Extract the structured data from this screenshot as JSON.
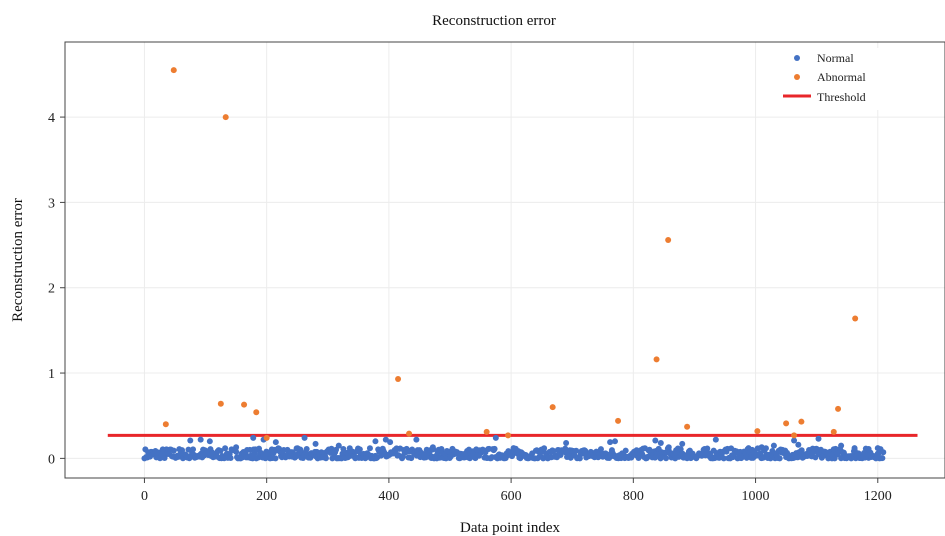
{
  "chart_data": {
    "type": "scatter",
    "title": "Reconstruction error",
    "xlabel": "Data point index",
    "ylabel": "Reconstruction error",
    "xlim": [
      -130,
      1310
    ],
    "ylim": [
      -0.23,
      4.88
    ],
    "xticks": [
      0,
      200,
      400,
      600,
      800,
      1000,
      1200
    ],
    "yticks": [
      0,
      1,
      2,
      3,
      4
    ],
    "grid": true,
    "legend_position": "top-right",
    "colors": {
      "normal": "#4472c4",
      "abnormal": "#ed7d31",
      "threshold": "#e8262a"
    },
    "threshold": {
      "name": "Threshold",
      "y": 0.27,
      "x_range": [
        -60,
        1265
      ]
    },
    "series": [
      {
        "name": "Normal",
        "baseline_range": [
          0.0,
          0.12
        ],
        "x_range": [
          0,
          1210
        ],
        "points": [
          [
            75,
            0.21
          ],
          [
            92,
            0.22
          ],
          [
            107,
            0.2
          ],
          [
            150,
            0.13
          ],
          [
            178,
            0.24
          ],
          [
            195,
            0.22
          ],
          [
            215,
            0.19
          ],
          [
            262,
            0.24
          ],
          [
            280,
            0.17
          ],
          [
            318,
            0.15
          ],
          [
            378,
            0.2
          ],
          [
            395,
            0.22
          ],
          [
            402,
            0.19
          ],
          [
            445,
            0.22
          ],
          [
            472,
            0.13
          ],
          [
            575,
            0.24
          ],
          [
            604,
            0.12
          ],
          [
            690,
            0.18
          ],
          [
            762,
            0.19
          ],
          [
            770,
            0.2
          ],
          [
            836,
            0.21
          ],
          [
            845,
            0.18
          ],
          [
            858,
            0.13
          ],
          [
            880,
            0.17
          ],
          [
            935,
            0.22
          ],
          [
            1010,
            0.13
          ],
          [
            1030,
            0.15
          ],
          [
            1063,
            0.21
          ],
          [
            1070,
            0.16
          ],
          [
            1103,
            0.23
          ],
          [
            1140,
            0.15
          ],
          [
            1162,
            0.12
          ],
          [
            1185,
            0.11
          ],
          [
            1200,
            0.12
          ]
        ]
      },
      {
        "name": "Abnormal",
        "points": [
          [
            35,
            0.4
          ],
          [
            48,
            4.55
          ],
          [
            133,
            4.0
          ],
          [
            125,
            0.64
          ],
          [
            163,
            0.63
          ],
          [
            183,
            0.54
          ],
          [
            200,
            0.24
          ],
          [
            415,
            0.93
          ],
          [
            433,
            0.29
          ],
          [
            560,
            0.31
          ],
          [
            595,
            0.27
          ],
          [
            668,
            0.6
          ],
          [
            775,
            0.44
          ],
          [
            838,
            1.16
          ],
          [
            857,
            2.56
          ],
          [
            888,
            0.37
          ],
          [
            1003,
            0.32
          ],
          [
            1050,
            0.41
          ],
          [
            1063,
            0.27
          ],
          [
            1075,
            0.43
          ],
          [
            1128,
            0.31
          ],
          [
            1135,
            0.58
          ],
          [
            1163,
            1.64
          ]
        ]
      }
    ]
  }
}
